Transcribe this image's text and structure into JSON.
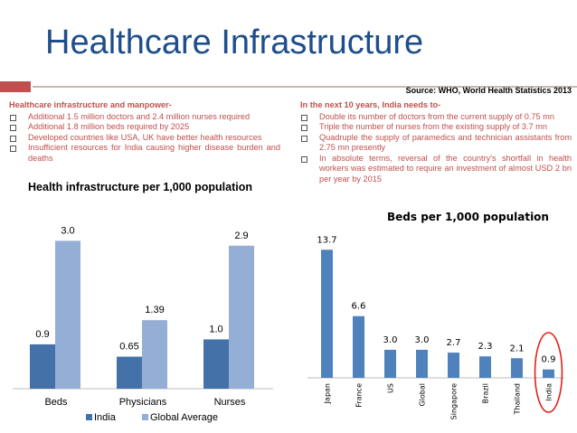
{
  "slide": {
    "title": "Healthcare Infrastructure",
    "source": "Source: WHO, World Health Statistics 2013"
  },
  "left_text": {
    "heading": "Healthcare infrastructure and manpower-",
    "bullets": [
      "Additional 1.5 million doctors and 2.4 million nurses required",
      "Additional 1.8 million beds required by 2025",
      "Developed countries like USA, UK have better health resources",
      "Insufficient resources for India causing higher disease burden and deaths"
    ]
  },
  "right_text": {
    "heading": "In the next 10 years, India needs to-",
    "bullets": [
      "Double its number of doctors from the current supply of 0.75 mn",
      "Triple the number of nurses from the existing supply of 3.7 mn",
      "Quadruple the supply of paramedics and technician assistants from 2.75 mn presently",
      "In absolute terms, reversal of the country's shortfall in health workers was estimated to require an investment of almost USD 2 bn per year by 2015"
    ]
  },
  "chart_data": [
    {
      "type": "bar",
      "title": "Health infrastructure per 1,000 population",
      "categories": [
        "Beds",
        "Physicians",
        "Nurses"
      ],
      "series": [
        {
          "name": "India",
          "values": [
            0.9,
            0.65,
            1.0
          ],
          "labels": [
            "0.9",
            "0.65",
            "1.0"
          ],
          "color": "#4472a8"
        },
        {
          "name": "Global Average",
          "values": [
            3.0,
            1.39,
            2.9
          ],
          "labels": [
            "3.0",
            "1.39",
            "2.9"
          ],
          "color": "#95aed6"
        }
      ],
      "ylim": [
        0,
        3.3
      ],
      "legend": "bottom"
    },
    {
      "type": "bar",
      "title": "Beds per 1,000 population",
      "categories": [
        "Japan",
        "France",
        "US",
        "Global",
        "Singapore",
        "Brazil",
        "Thailand",
        "India"
      ],
      "values": [
        13.7,
        6.6,
        3.0,
        3.0,
        2.7,
        2.3,
        2.1,
        0.9
      ],
      "labels": [
        "13.7",
        "6.6",
        "3.0",
        "3.0",
        "2.7",
        "2.3",
        "2.1",
        "0.9"
      ],
      "color": "#4f81bd",
      "highlight": "India",
      "highlight_color": "#e0201b",
      "ylim": [
        0,
        14.5
      ]
    }
  ]
}
